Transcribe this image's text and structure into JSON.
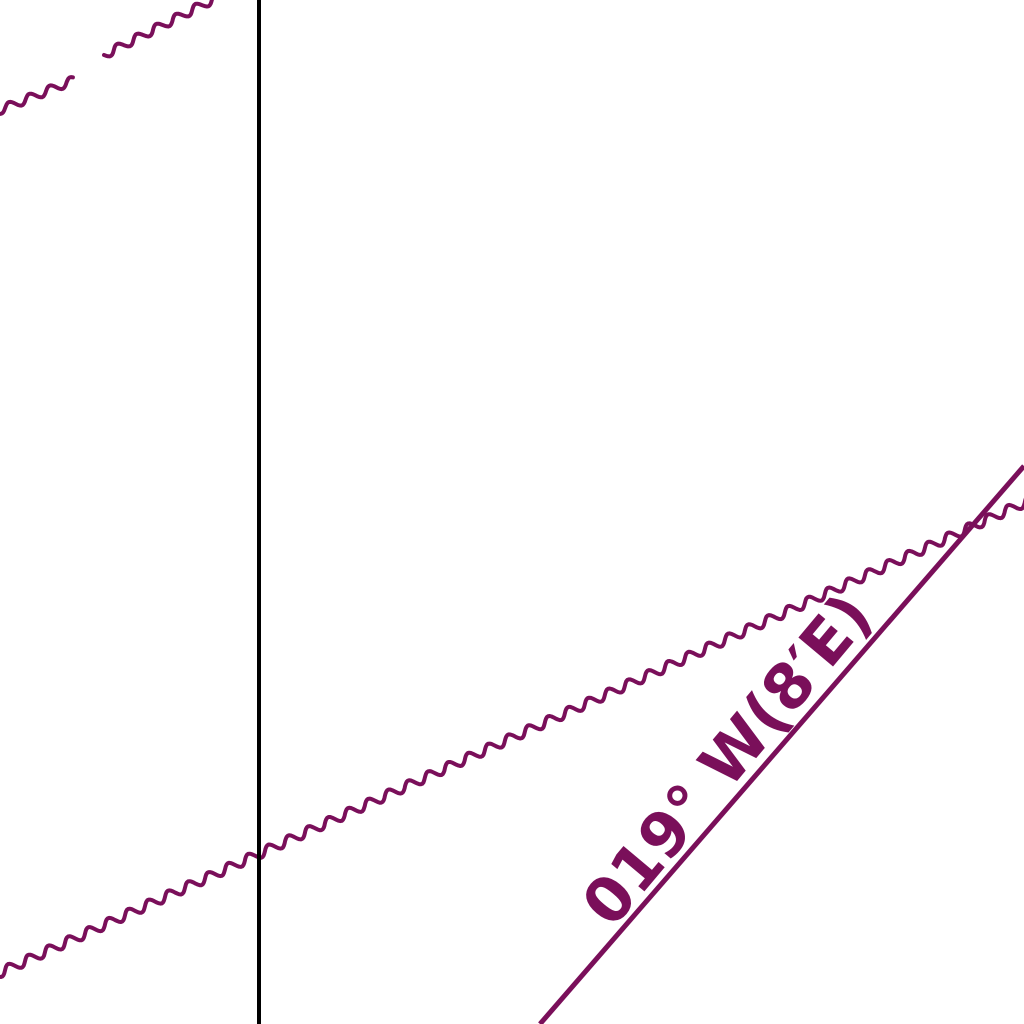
{
  "colors": {
    "background": "#ffffff",
    "chart_magenta": "#7a0f5a",
    "meridian": "#000000"
  },
  "map": {
    "bearing_line": {
      "label": "019° W(8′E)"
    }
  }
}
